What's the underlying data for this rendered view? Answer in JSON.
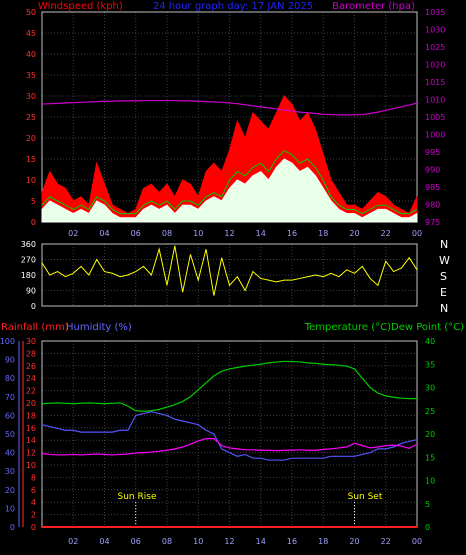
{
  "header": {
    "left_label": "Windspeed (kph)",
    "center_label": "24 hour graph day: 17 JAN 2025",
    "right_label": "Barometer (hpa)"
  },
  "middle_panel": {
    "direction_letters": [
      "N",
      "W",
      "S",
      "E",
      "N"
    ]
  },
  "lower_header": {
    "rain_label": "Rainfall (mm)",
    "humidity_label": "Humidity (%)",
    "temp_label": "Temperature (°C)",
    "dew_label": "Dew Point (°C)"
  },
  "annotations": {
    "sunrise": "Sun Rise",
    "sunset": "Sun Set"
  },
  "colors": {
    "wind_gust": "#ff0000",
    "wind_avg": "#ffffff",
    "wind_avg_line": "#00cc00",
    "barometer": "#cc00cc",
    "direction": "#ffff00",
    "rainfall": "#ff2020",
    "humidity": "#5555ff",
    "temperature": "#00cc00",
    "dew_point": "#ff00ff",
    "grid": "#404040",
    "frame": "#c0c0c0",
    "right_axis_baro": "#cc00cc",
    "right_axis_temp": "#00cc00"
  },
  "chart_data": [
    {
      "type": "area",
      "name": "wind-barometer",
      "x_ticks": [
        "02",
        "04",
        "06",
        "08",
        "10",
        "12",
        "14",
        "16",
        "18",
        "20",
        "22",
        "00"
      ],
      "y_left_ticks": [
        "0",
        "5",
        "10",
        "15",
        "20",
        "25",
        "30",
        "35",
        "40",
        "45",
        "50"
      ],
      "y_left_range": [
        0,
        50
      ],
      "y_right_ticks": [
        "975",
        "980",
        "985",
        "990",
        "995",
        "1000",
        "1005",
        "1010",
        "1015",
        "1020",
        "1025",
        "1030",
        "1035"
      ],
      "y_right_range": [
        975,
        1035
      ],
      "x": [
        0,
        0.5,
        1,
        1.5,
        2,
        2.5,
        3,
        3.5,
        4,
        4.5,
        5,
        5.5,
        6,
        6.5,
        7,
        7.5,
        8,
        8.5,
        9,
        9.5,
        10,
        10.5,
        11,
        11.5,
        12,
        12.5,
        13,
        13.5,
        14,
        14.5,
        15,
        15.5,
        16,
        16.5,
        17,
        17.5,
        18,
        18.5,
        19,
        19.5,
        20,
        20.5,
        21,
        21.5,
        22,
        22.5,
        23,
        23.5,
        24
      ],
      "series": [
        {
          "key": "gust",
          "values": [
            7,
            12,
            9,
            8,
            5,
            6,
            4,
            14,
            9,
            4,
            3,
            2,
            3,
            8,
            9,
            7,
            9,
            6,
            10,
            9,
            6,
            12,
            14,
            12,
            17,
            24,
            20,
            26,
            24,
            22,
            26,
            30,
            28,
            24,
            26,
            22,
            16,
            10,
            7,
            4,
            4,
            3,
            5,
            7,
            6,
            4,
            3,
            2,
            6
          ]
        },
        {
          "key": "average",
          "values": [
            3,
            5,
            4,
            3,
            2,
            3,
            2,
            5,
            4,
            2,
            1,
            1,
            1,
            3,
            4,
            3,
            4,
            2,
            4,
            4,
            3,
            5,
            6,
            5,
            8,
            10,
            9,
            11,
            12,
            10,
            13,
            15,
            14,
            12,
            13,
            11,
            8,
            5,
            3,
            2,
            2,
            1,
            2,
            3,
            3,
            2,
            1,
            1,
            2
          ]
        },
        {
          "key": "average_line",
          "values": [
            4,
            6,
            5,
            4,
            3,
            4,
            3,
            6,
            5,
            3,
            2,
            2,
            2,
            4,
            5,
            4,
            5,
            3,
            5,
            5,
            4,
            6,
            7,
            6,
            10,
            12,
            11,
            13,
            14,
            12,
            15,
            17,
            16,
            14,
            15,
            13,
            10,
            6,
            4,
            3,
            3,
            2,
            3,
            4,
            4,
            3,
            2,
            2,
            3
          ]
        },
        {
          "key": "barometer",
          "values": [
            1008.7,
            1008.8,
            1008.9,
            1009.0,
            1009.1,
            1009.2,
            1009.3,
            1009.4,
            1009.5,
            1009.5,
            1009.6,
            1009.6,
            1009.6,
            1009.7,
            1009.7,
            1009.7,
            1009.7,
            1009.7,
            1009.6,
            1009.6,
            1009.5,
            1009.4,
            1009.3,
            1009.2,
            1009.0,
            1008.8,
            1008.5,
            1008.2,
            1007.9,
            1007.6,
            1007.3,
            1007.0,
            1006.7,
            1006.4,
            1006.2,
            1006.0,
            1005.8,
            1005.7,
            1005.6,
            1005.6,
            1005.6,
            1005.7,
            1006.0,
            1006.4,
            1006.9,
            1007.4,
            1007.9,
            1008.4,
            1009.0
          ]
        }
      ]
    },
    {
      "type": "line",
      "name": "wind-direction",
      "y_ticks": [
        "0",
        "90",
        "180",
        "270",
        "360"
      ],
      "y_range": [
        0,
        360
      ],
      "series": [
        {
          "key": "direction",
          "x": [
            0,
            0.5,
            1,
            1.5,
            2,
            2.5,
            3,
            3.5,
            4,
            4.5,
            5,
            5.5,
            6,
            6.5,
            7,
            7.5,
            8,
            8.5,
            9,
            9.5,
            10,
            10.5,
            11,
            11.5,
            12,
            12.5,
            13,
            13.5,
            14,
            14.5,
            15,
            15.5,
            16,
            16.5,
            17,
            17.5,
            18,
            18.5,
            19,
            19.5,
            20,
            20.5,
            21,
            21.5,
            22,
            22.5,
            23,
            23.5,
            24
          ],
          "values": [
            250,
            180,
            200,
            170,
            190,
            230,
            180,
            270,
            200,
            190,
            170,
            180,
            200,
            230,
            180,
            330,
            120,
            350,
            80,
            300,
            150,
            330,
            60,
            280,
            120,
            170,
            90,
            200,
            160,
            150,
            140,
            150,
            150,
            160,
            170,
            180,
            170,
            190,
            170,
            210,
            190,
            230,
            160,
            120,
            260,
            200,
            220,
            280,
            210
          ]
        }
      ]
    },
    {
      "type": "line",
      "name": "temperature-humidity",
      "x_ticks": [
        "02",
        "04",
        "06",
        "08",
        "10",
        "12",
        "14",
        "16",
        "18",
        "20",
        "22",
        "00"
      ],
      "y_left_ticks": [
        "0",
        "10",
        "20",
        "30",
        "40",
        "50",
        "60",
        "70",
        "80",
        "90",
        "100"
      ],
      "y_left_range": [
        0,
        100
      ],
      "y_rain_ticks": [
        "0",
        "2",
        "4",
        "6",
        "8",
        "10",
        "12",
        "14",
        "16",
        "18",
        "20",
        "22",
        "24",
        "26",
        "28",
        "30"
      ],
      "y_rain_range": [
        0,
        30
      ],
      "y_right_ticks": [
        "0",
        "5",
        "10",
        "15",
        "20",
        "25",
        "30",
        "35",
        "40"
      ],
      "y_right_range": [
        0,
        40
      ],
      "x": [
        0,
        0.5,
        1,
        1.5,
        2,
        2.5,
        3,
        3.5,
        4,
        4.5,
        5,
        5.5,
        6,
        6.5,
        7,
        7.5,
        8,
        8.5,
        9,
        9.5,
        10,
        10.5,
        11,
        11.5,
        12,
        12.5,
        13,
        13.5,
        14,
        14.5,
        15,
        15.5,
        16,
        16.5,
        17,
        17.5,
        18,
        18.5,
        19,
        19.5,
        20,
        20.5,
        21,
        21.5,
        22,
        22.5,
        23,
        23.5,
        24
      ],
      "series": [
        {
          "key": "rainfall",
          "values": [
            0,
            0,
            0,
            0,
            0,
            0,
            0,
            0,
            0,
            0,
            0,
            0,
            0,
            0,
            0,
            0,
            0,
            0,
            0,
            0,
            0,
            0,
            0,
            0,
            0,
            0,
            0,
            0,
            0,
            0,
            0,
            0,
            0,
            0,
            0,
            0,
            0,
            0,
            0,
            0,
            0,
            0,
            0,
            0,
            0,
            0,
            0,
            0,
            0
          ]
        },
        {
          "key": "humidity",
          "values": [
            55,
            54,
            53,
            52,
            52,
            51,
            51,
            51,
            51,
            51,
            52,
            52,
            60,
            61,
            62,
            61,
            60,
            58,
            57,
            56,
            55,
            52,
            50,
            42,
            40,
            38,
            39,
            37,
            37,
            36,
            36,
            36,
            37,
            37,
            37,
            37,
            37,
            38,
            38,
            38,
            38,
            39,
            40,
            42,
            42,
            43,
            45,
            46,
            47
          ]
        },
        {
          "key": "temperature",
          "values": [
            26.5,
            26.6,
            26.7,
            26.6,
            26.5,
            26.6,
            26.7,
            26.6,
            26.5,
            26.6,
            26.7,
            26.0,
            25.0,
            24.9,
            25.0,
            25.3,
            25.8,
            26.3,
            27.0,
            28.0,
            29.5,
            31.0,
            32.5,
            33.5,
            34.0,
            34.3,
            34.6,
            34.8,
            35.0,
            35.3,
            35.5,
            35.6,
            35.6,
            35.5,
            35.3,
            35.2,
            35.0,
            34.9,
            34.8,
            34.6,
            34.0,
            32.0,
            30.0,
            28.8,
            28.2,
            27.9,
            27.7,
            27.6,
            27.6
          ]
        },
        {
          "key": "dew_point",
          "values": [
            15.8,
            15.6,
            15.5,
            15.5,
            15.6,
            15.5,
            15.6,
            15.7,
            15.6,
            15.5,
            15.6,
            15.7,
            15.9,
            16.0,
            16.1,
            16.3,
            16.5,
            16.8,
            17.2,
            17.8,
            18.5,
            19.0,
            19.0,
            17.5,
            17.0,
            16.8,
            16.6,
            16.6,
            16.5,
            16.5,
            16.4,
            16.5,
            16.5,
            16.6,
            16.5,
            16.5,
            16.7,
            16.8,
            17.0,
            17.2,
            18.0,
            17.5,
            17.0,
            17.2,
            17.5,
            17.6,
            17.4,
            16.9,
            17.8
          ]
        }
      ]
    }
  ]
}
